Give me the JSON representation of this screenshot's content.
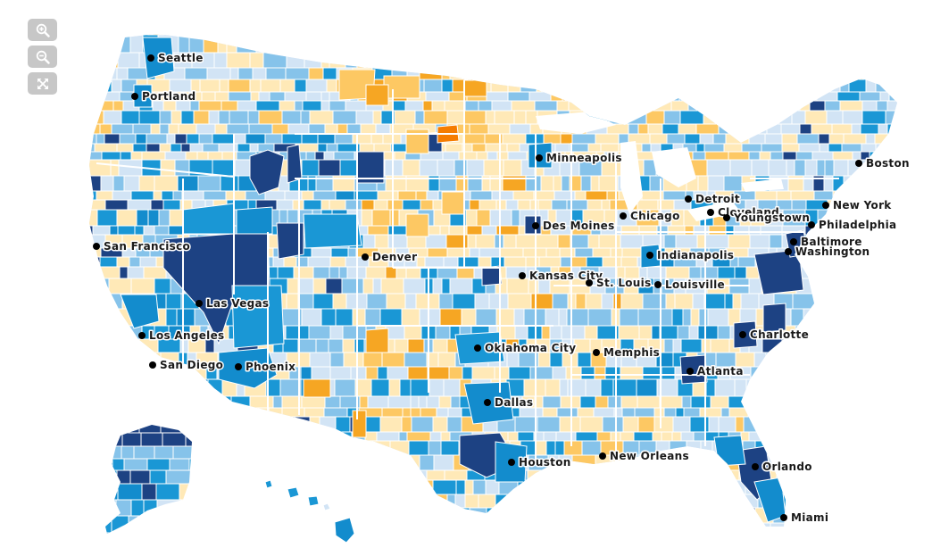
{
  "map": {
    "title": "",
    "palette": {
      "dark_navy": "#1d4283",
      "medium_blue": "#138ccd",
      "blue": "#1a97d5",
      "light_blue": "#86c3ea",
      "pale_blue": "#d2e4f5",
      "pale_yellow": "#ffe9b7",
      "yellow": "#fdc863",
      "orange": "#f6a623",
      "dark_orange": "#f57c00",
      "border": "#ffffff"
    }
  },
  "controls": {
    "zoom_in_icon": "zoom-in-icon",
    "zoom_out_icon": "zoom-out-icon",
    "fullscreen_icon": "fullscreen-icon"
  },
  "cities": [
    {
      "name": "Seattle"
    },
    {
      "name": "Portland"
    },
    {
      "name": "San Francisco"
    },
    {
      "name": "Los Angeles"
    },
    {
      "name": "San Diego"
    },
    {
      "name": "Las Vegas"
    },
    {
      "name": "Phoenix"
    },
    {
      "name": "Denver"
    },
    {
      "name": "Minneapolis"
    },
    {
      "name": "Des Moines"
    },
    {
      "name": "Kansas City"
    },
    {
      "name": "Oklahoma City"
    },
    {
      "name": "Dallas"
    },
    {
      "name": "Houston"
    },
    {
      "name": "New Orleans"
    },
    {
      "name": "Memphis"
    },
    {
      "name": "St. Louis"
    },
    {
      "name": "Chicago"
    },
    {
      "name": "Indianapolis"
    },
    {
      "name": "Louisville"
    },
    {
      "name": "Detroit"
    },
    {
      "name": "Cleveland"
    },
    {
      "name": "Youngstown"
    },
    {
      "name": "Atlanta"
    },
    {
      "name": "Charlotte"
    },
    {
      "name": "Orlando"
    },
    {
      "name": "Miami"
    },
    {
      "name": "Washington"
    },
    {
      "name": "Baltimore"
    },
    {
      "name": "Philadelphia"
    },
    {
      "name": "New York"
    },
    {
      "name": "Boston"
    }
  ]
}
